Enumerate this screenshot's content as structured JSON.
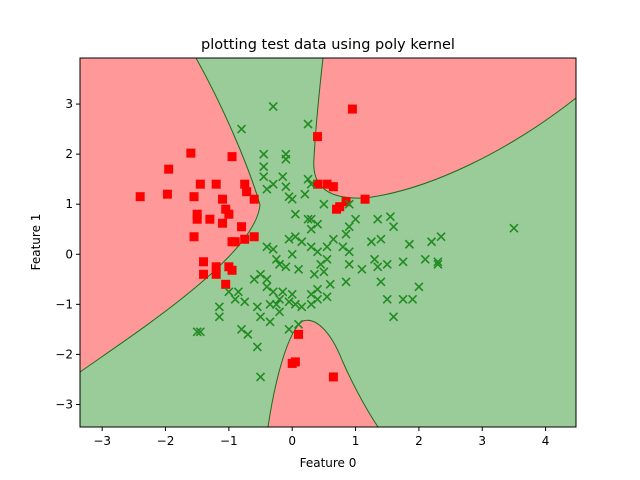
{
  "chart_data": {
    "type": "scatter",
    "title": "plotting test data using poly kernel",
    "xlabel": "Feature 0",
    "ylabel": "Feature 1",
    "xlim": [
      -3.35,
      4.48
    ],
    "ylim": [
      -3.45,
      3.92
    ],
    "xticks": [
      -3,
      -2,
      -1,
      0,
      1,
      2,
      3,
      4
    ],
    "yticks": [
      -3,
      -2,
      -1,
      0,
      1,
      2,
      3
    ],
    "grid": false,
    "colors": {
      "class_red": "#ff0000",
      "class_green": "#228b22",
      "region_red": "#ff9999",
      "region_green": "#99cc99",
      "boundary": "#1a6e1a"
    },
    "series": [
      {
        "marker": "square",
        "color": "#ff0000",
        "points": [
          [
            -2.4,
            1.15
          ],
          [
            -1.95,
            1.7
          ],
          [
            -1.97,
            1.2
          ],
          [
            -1.6,
            2.02
          ],
          [
            -1.45,
            1.4
          ],
          [
            -1.2,
            1.4
          ],
          [
            -0.95,
            1.95
          ],
          [
            -1.55,
            1.15
          ],
          [
            -1.3,
            0.7
          ],
          [
            -1.5,
            0.8
          ],
          [
            -1.1,
            1.1
          ],
          [
            -1.5,
            0.7
          ],
          [
            -1.0,
            0.8
          ],
          [
            -1.05,
            0.9
          ],
          [
            -1.1,
            0.62
          ],
          [
            -0.75,
            1.4
          ],
          [
            -0.72,
            1.25
          ],
          [
            -0.6,
            1.1
          ],
          [
            -0.95,
            0.25
          ],
          [
            -0.9,
            0.25
          ],
          [
            -0.8,
            0.55
          ],
          [
            -0.75,
            0.3
          ],
          [
            -0.6,
            0.35
          ],
          [
            -1.55,
            0.35
          ],
          [
            -1.4,
            -0.15
          ],
          [
            -1.4,
            -0.4
          ],
          [
            -1.2,
            -0.4
          ],
          [
            -1.2,
            -0.25
          ],
          [
            -1.0,
            -0.25
          ],
          [
            -0.95,
            -0.32
          ],
          [
            -1.05,
            -0.6
          ],
          [
            0.4,
            2.35
          ],
          [
            0.95,
            2.9
          ],
          [
            0.4,
            1.4
          ],
          [
            0.55,
            1.4
          ],
          [
            0.65,
            1.35
          ],
          [
            0.85,
            1.05
          ],
          [
            0.75,
            0.95
          ],
          [
            0.7,
            0.9
          ],
          [
            1.15,
            1.1
          ],
          [
            0.1,
            -1.6
          ],
          [
            0.05,
            -2.15
          ],
          [
            0.0,
            -2.18
          ],
          [
            0.65,
            -2.45
          ]
        ]
      },
      {
        "marker": "x",
        "color": "#228b22",
        "points": [
          [
            -0.3,
            2.95
          ],
          [
            0.25,
            2.6
          ],
          [
            -0.8,
            2.5
          ],
          [
            -0.45,
            2.0
          ],
          [
            -0.1,
            2.0
          ],
          [
            -0.1,
            1.9
          ],
          [
            -0.45,
            1.75
          ],
          [
            -0.45,
            1.55
          ],
          [
            -0.15,
            1.55
          ],
          [
            -0.3,
            1.4
          ],
          [
            -0.4,
            1.3
          ],
          [
            -0.1,
            1.35
          ],
          [
            0.25,
            1.5
          ],
          [
            0.3,
            1.4
          ],
          [
            -0.05,
            1.15
          ],
          [
            0.0,
            1.1
          ],
          [
            0.2,
            1.2
          ],
          [
            0.5,
            1.0
          ],
          [
            0.05,
            0.8
          ],
          [
            0.25,
            0.7
          ],
          [
            0.3,
            0.7
          ],
          [
            0.4,
            0.6
          ],
          [
            0.3,
            0.5
          ],
          [
            0.9,
            1.0
          ],
          [
            0.9,
            0.55
          ],
          [
            1.0,
            0.7
          ],
          [
            1.35,
            0.7
          ],
          [
            1.55,
            0.75
          ],
          [
            1.6,
            0.55
          ],
          [
            0.85,
            0.4
          ],
          [
            0.8,
            0.15
          ],
          [
            0.9,
            0.05
          ],
          [
            1.25,
            0.25
          ],
          [
            1.4,
            0.3
          ],
          [
            1.85,
            0.2
          ],
          [
            2.2,
            0.25
          ],
          [
            2.35,
            0.35
          ],
          [
            2.1,
            -0.1
          ],
          [
            2.3,
            -0.15
          ],
          [
            1.75,
            -0.15
          ],
          [
            1.5,
            -0.2
          ],
          [
            1.35,
            -0.25
          ],
          [
            1.3,
            -0.1
          ],
          [
            0.9,
            -0.2
          ],
          [
            1.1,
            -0.3
          ],
          [
            1.4,
            -0.55
          ],
          [
            2.0,
            -0.65
          ],
          [
            1.75,
            -0.9
          ],
          [
            1.9,
            -0.9
          ],
          [
            1.5,
            -0.9
          ],
          [
            1.6,
            -1.25
          ],
          [
            0.85,
            -0.55
          ],
          [
            0.6,
            -0.6
          ],
          [
            0.55,
            -0.85
          ],
          [
            0.4,
            -0.7
          ],
          [
            0.35,
            -0.4
          ],
          [
            0.5,
            -0.35
          ],
          [
            0.45,
            -0.2
          ],
          [
            0.55,
            -0.1
          ],
          [
            0.4,
            0.05
          ],
          [
            0.3,
            0.15
          ],
          [
            0.15,
            0.25
          ],
          [
            0.05,
            0.35
          ],
          [
            0.0,
            0.0
          ],
          [
            -0.1,
            -0.25
          ],
          [
            0.1,
            -0.3
          ],
          [
            -0.2,
            -0.2
          ],
          [
            -0.25,
            -0.1
          ],
          [
            -0.3,
            0.1
          ],
          [
            -0.05,
            0.3
          ],
          [
            -0.4,
            -0.5
          ],
          [
            -0.6,
            -0.5
          ],
          [
            -0.4,
            -0.65
          ],
          [
            -0.3,
            -0.75
          ],
          [
            -0.15,
            -0.75
          ],
          [
            0.0,
            -0.8
          ],
          [
            -0.2,
            -0.9
          ],
          [
            -0.05,
            -0.95
          ],
          [
            0.05,
            -1.0
          ],
          [
            0.3,
            -0.8
          ],
          [
            0.4,
            -0.9
          ],
          [
            0.3,
            -1.0
          ],
          [
            0.15,
            -1.05
          ],
          [
            -0.35,
            -1.0
          ],
          [
            -0.25,
            -1.0
          ],
          [
            -0.35,
            -1.35
          ],
          [
            -0.55,
            -1.05
          ],
          [
            -0.5,
            -0.4
          ],
          [
            -0.85,
            -0.75
          ],
          [
            -1.0,
            -0.75
          ],
          [
            -0.9,
            -0.9
          ],
          [
            -0.75,
            -0.95
          ],
          [
            -1.15,
            -1.05
          ],
          [
            -0.8,
            -1.5
          ],
          [
            -0.7,
            -1.6
          ],
          [
            -1.15,
            -1.25
          ],
          [
            -1.45,
            -1.55
          ],
          [
            -1.5,
            -1.55
          ],
          [
            -0.5,
            -1.25
          ],
          [
            -0.55,
            -1.85
          ],
          [
            -0.05,
            -1.5
          ],
          [
            0.1,
            -1.4
          ],
          [
            -0.2,
            -1.15
          ],
          [
            -0.5,
            -2.45
          ],
          [
            -0.4,
            0.15
          ],
          [
            0.55,
            0.15
          ],
          [
            0.65,
            0.3
          ],
          [
            2.3,
            -0.2
          ],
          [
            3.5,
            0.52
          ]
        ]
      }
    ]
  }
}
